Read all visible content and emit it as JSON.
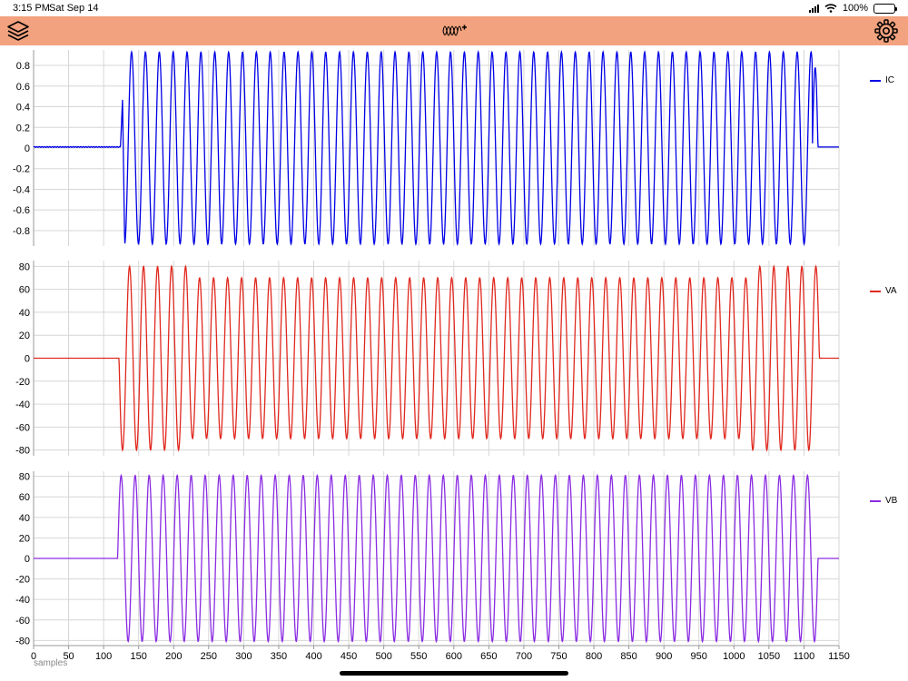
{
  "status_bar": {
    "time": "3:15 PM",
    "date": "Sat Sep 14",
    "battery": "100%"
  },
  "toolbar": {
    "left_icon": "layers-icon",
    "center_icon": "add-waveform-icon",
    "right_icon": "gear-icon",
    "color": "#f2a27e"
  },
  "chart_data": [
    {
      "type": "line",
      "series": [
        {
          "name": "IC",
          "color": "#0000e6"
        }
      ],
      "ylim": [
        -0.95,
        0.95
      ],
      "yticks": [
        0.8,
        0.6,
        0.4,
        0.2,
        0,
        -0.2,
        -0.4,
        -0.6,
        -0.8
      ],
      "ytick_labels": [
        "0.8",
        "0.6",
        "0.4",
        "0.2",
        "0",
        "-0.2",
        "-0.4",
        "-0.6",
        "-0.8"
      ],
      "signal": {
        "baseline": 0.01,
        "pre_end": 124,
        "spike_sample": 127,
        "spike_value": 0.47,
        "start": 130,
        "end": 1120,
        "amplitude": 0.93,
        "cycles": 50,
        "final_spike_value": 0.78
      },
      "xlim": [
        0,
        1150
      ],
      "legend": "right"
    },
    {
      "type": "line",
      "series": [
        {
          "name": "VA",
          "color": "#e0281e"
        }
      ],
      "ylim": [
        -85,
        85
      ],
      "yticks": [
        80,
        60,
        40,
        20,
        0,
        -20,
        -40,
        -60,
        -80
      ],
      "ytick_labels": [
        "80",
        "60",
        "40",
        "20",
        "0",
        "-20",
        "-40",
        "-60",
        "-80"
      ],
      "signal": {
        "baseline": 0,
        "start": 122,
        "end": 1122,
        "amplitude_high": 80,
        "amplitude_low": 70,
        "high_segments": [
          [
            122,
            222
          ],
          [
            1025,
            1122
          ]
        ],
        "cycles": 50
      },
      "xlim": [
        0,
        1150
      ],
      "legend": "right"
    },
    {
      "type": "line",
      "series": [
        {
          "name": "VB",
          "color": "#8a2be2"
        }
      ],
      "ylim": [
        -85,
        85
      ],
      "yticks": [
        80,
        60,
        40,
        20,
        0,
        -20,
        -40,
        -60,
        -80
      ],
      "ytick_labels": [
        "80",
        "60",
        "40",
        "20",
        "0",
        "-20",
        "-40",
        "-60",
        "-80"
      ],
      "signal": {
        "baseline": 0,
        "start": 120,
        "end": 1120,
        "amplitude": 81,
        "cycles": 50
      },
      "xlim": [
        0,
        1150
      ],
      "xticks": [
        0,
        50,
        100,
        150,
        200,
        250,
        300,
        350,
        400,
        450,
        500,
        550,
        600,
        650,
        700,
        750,
        800,
        850,
        900,
        950,
        1000,
        1050,
        1100,
        1150
      ],
      "xtick_labels": [
        "0",
        "50",
        "100",
        "150",
        "200",
        "250",
        "300",
        "350",
        "400",
        "450",
        "500",
        "550",
        "600",
        "650",
        "700",
        "750",
        "800",
        "850",
        "900",
        "950",
        "1000",
        "1050",
        "1100",
        "1150"
      ],
      "xlabel": "samples",
      "legend": "right"
    }
  ]
}
